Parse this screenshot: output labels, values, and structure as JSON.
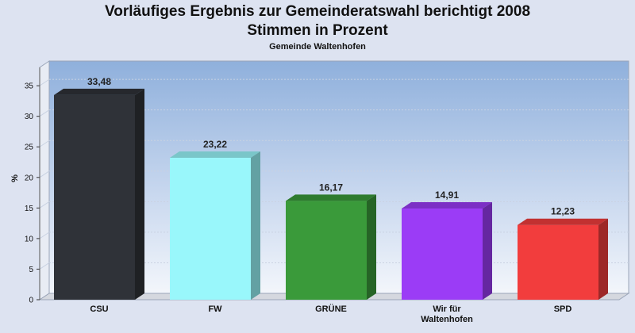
{
  "title_line1": "Vorläufiges Ergebnis zur Gemeinderatswahl berichtigt 2008",
  "title_line2": "Stimmen in Prozent",
  "subtitle": "Gemeinde Waltenhofen",
  "chart_data": {
    "type": "bar",
    "title": "Vorläufiges Ergebnis zur Gemeinderatswahl berichtigt 2008 Stimmen in Prozent",
    "subtitle": "Gemeinde Waltenhofen",
    "ylabel": "%",
    "xlabel": "",
    "ylim": [
      0,
      38
    ],
    "yticks": [
      0,
      5,
      10,
      15,
      20,
      25,
      30,
      35
    ],
    "grid": true,
    "categories": [
      [
        "CSU"
      ],
      [
        "FW"
      ],
      [
        "GRÜNE"
      ],
      [
        "Wir für",
        "Waltenhofen"
      ],
      [
        "SPD"
      ]
    ],
    "values": [
      33.48,
      23.22,
      16.17,
      14.91,
      12.23
    ],
    "value_labels": [
      "33,48",
      "23,22",
      "16,17",
      "14,91",
      "12,23"
    ],
    "colors": [
      "#2f3238",
      "#99f7fb",
      "#3a9a3a",
      "#9b3cf6",
      "#f23d3d"
    ]
  }
}
